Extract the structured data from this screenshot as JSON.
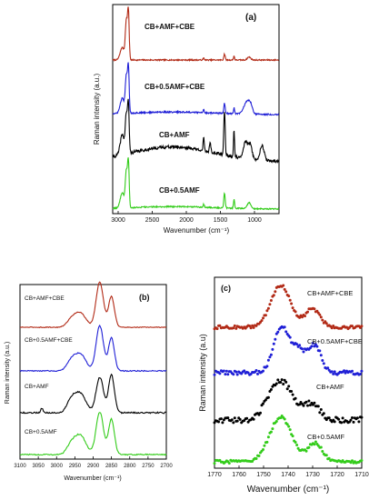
{
  "chart_data": [
    {
      "panel_label": "(a)",
      "type": "line",
      "xlabel": "Wavenumber (cm⁻¹)",
      "ylabel": "Raman intensity (a.u.)",
      "x_ticks": [
        3000,
        2500,
        2000,
        1500,
        1000
      ],
      "xlim": [
        3080,
        640
      ],
      "series": [
        {
          "name": "CB+AMF+CBE",
          "color": "#b22a16",
          "baseline": 0.8,
          "amp": 0.18,
          "peaks": [
            [
              2880,
              0.75,
              15
            ],
            [
              2850,
              0.95,
              12
            ],
            [
              2940,
              0.25,
              30
            ],
            [
              1440,
              0.12,
              10
            ],
            [
              1300,
              0.08,
              8
            ],
            [
              1080,
              0.06,
              25
            ],
            [
              1745,
              0.04,
              8
            ]
          ],
          "broad": 0.0,
          "noise": 0.012
        },
        {
          "name": "CB+0.5AMF+CBE",
          "color": "#1f1fd6",
          "baseline": 0.8,
          "amp": 0.18,
          "peaks": [
            [
              2880,
              0.7,
              15
            ],
            [
              2850,
              0.9,
              12
            ],
            [
              2940,
              0.3,
              30
            ],
            [
              1440,
              0.2,
              10
            ],
            [
              1300,
              0.12,
              8
            ],
            [
              1120,
              0.22,
              40
            ],
            [
              1060,
              0.18,
              30
            ],
            [
              1745,
              0.06,
              8
            ]
          ],
          "broad": 0.05,
          "noise": 0.015
        },
        {
          "name": "CB+AMF",
          "color": "#000000",
          "baseline": 0.8,
          "amp": 0.22,
          "peaks": [
            [
              2880,
              0.75,
              15
            ],
            [
              2850,
              0.95,
              12
            ],
            [
              2940,
              0.4,
              30
            ],
            [
              1440,
              0.9,
              10
            ],
            [
              1300,
              0.55,
              8
            ],
            [
              1130,
              0.35,
              30
            ],
            [
              1060,
              0.3,
              25
            ],
            [
              890,
              0.3,
              30
            ],
            [
              1745,
              0.25,
              8
            ],
            [
              1650,
              0.2,
              10
            ]
          ],
          "broad": 0.3,
          "noise": 0.03
        },
        {
          "name": "CB+0.5AMF",
          "color": "#33cc1a",
          "baseline": 0.8,
          "amp": 0.2,
          "peaks": [
            [
              2880,
              0.7,
              15
            ],
            [
              2850,
              0.9,
              12
            ],
            [
              2940,
              0.3,
              30
            ],
            [
              1440,
              0.3,
              10
            ],
            [
              1300,
              0.18,
              8
            ],
            [
              1080,
              0.12,
              25
            ],
            [
              1745,
              0.06,
              8
            ]
          ],
          "broad": 0.05,
          "noise": 0.012
        }
      ]
    },
    {
      "panel_label": "(b)",
      "type": "line",
      "xlabel": "Wavenumber (cm⁻¹)",
      "ylabel": "Raman intensity (a.u.)",
      "x_ticks": [
        3100,
        3050,
        3000,
        2950,
        2900,
        2850,
        2800,
        2750,
        2700
      ],
      "xlim": [
        3100,
        2700
      ],
      "series": [
        {
          "name": "CB+AMF+CBE",
          "color": "#b22a16",
          "baseline": 0.85,
          "amp": 0.14,
          "peaks": [
            [
              2882,
              0.95,
              10
            ],
            [
              2850,
              0.65,
              8
            ],
            [
              2935,
              0.3,
              15
            ],
            [
              2960,
              0.15,
              12
            ]
          ],
          "broad": 0.0,
          "noise": 0.008
        },
        {
          "name": "CB+0.5AMF+CBE",
          "color": "#1f1fd6",
          "baseline": 0.85,
          "amp": 0.14,
          "peaks": [
            [
              2882,
              0.95,
              10
            ],
            [
              2850,
              0.7,
              8
            ],
            [
              2935,
              0.35,
              15
            ],
            [
              2960,
              0.2,
              12
            ]
          ],
          "broad": 0.0,
          "noise": 0.01
        },
        {
          "name": "CB+AMF",
          "color": "#000000",
          "baseline": 0.85,
          "amp": 0.16,
          "peaks": [
            [
              2882,
              0.75,
              10
            ],
            [
              2850,
              0.8,
              8
            ],
            [
              2935,
              0.4,
              15
            ],
            [
              2960,
              0.25,
              12
            ],
            [
              3040,
              0.1,
              3
            ]
          ],
          "broad": 0.0,
          "noise": 0.015
        },
        {
          "name": "CB+0.5AMF",
          "color": "#33cc1a",
          "baseline": 0.85,
          "amp": 0.16,
          "peaks": [
            [
              2882,
              0.9,
              10
            ],
            [
              2850,
              0.75,
              8
            ],
            [
              2935,
              0.4,
              15
            ],
            [
              2960,
              0.2,
              12
            ]
          ],
          "broad": 0.0,
          "noise": 0.012
        }
      ]
    },
    {
      "panel_label": "(c)",
      "type": "scatter",
      "xlabel": "Wavenumber (cm⁻¹)",
      "ylabel": "Raman intensity (a.u)",
      "x_ticks": [
        1770,
        1760,
        1750,
        1740,
        1730,
        1720,
        1710
      ],
      "xlim": [
        1770,
        1710
      ],
      "series": [
        {
          "name": "CB+AMF+CBE",
          "color": "#b22a16",
          "baseline": 0.85,
          "amp": 0.14,
          "peaks": [
            [
              1743,
              0.8,
              4
            ],
            [
              1730,
              0.35,
              3
            ]
          ],
          "broad": 0.0,
          "noise": 0.03
        },
        {
          "name": "CB+0.5AMF+CBE",
          "color": "#1f1fd6",
          "baseline": 0.85,
          "amp": 0.15,
          "peaks": [
            [
              1743,
              0.85,
              3
            ],
            [
              1736,
              0.45,
              3
            ],
            [
              1729,
              0.5,
              2.5
            ]
          ],
          "broad": 0.0,
          "noise": 0.04
        },
        {
          "name": "CB+AMF",
          "color": "#000000",
          "baseline": 0.85,
          "amp": 0.14,
          "peaks": [
            [
              1743,
              0.75,
              5
            ],
            [
              1730,
              0.3,
              3
            ]
          ],
          "broad": 0.0,
          "noise": 0.06
        },
        {
          "name": "CB+0.5AMF",
          "color": "#33cc1a",
          "baseline": 0.85,
          "amp": 0.15,
          "peaks": [
            [
              1743,
              0.85,
              4.5
            ],
            [
              1729,
              0.35,
              3
            ]
          ],
          "broad": 0.0,
          "noise": 0.03
        }
      ]
    }
  ]
}
